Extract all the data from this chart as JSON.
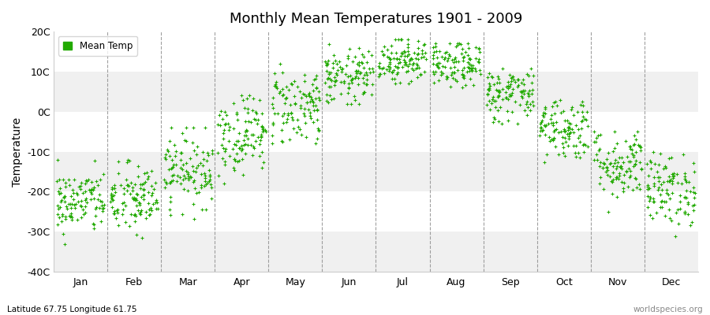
{
  "title": "Monthly Mean Temperatures 1901 - 2009",
  "ylabel": "Temperature",
  "xlabel_bottom_left": "Latitude 67.75 Longitude 61.75",
  "xlabel_bottom_right": "worldspecies.org",
  "legend_label": "Mean Temp",
  "dot_color": "#22aa00",
  "background_color": "#ffffff",
  "plot_bg_color": "#ffffff",
  "band_color_light": "#f0f0f0",
  "band_color_white": "#ffffff",
  "ylim": [
    -40,
    20
  ],
  "yticks": [
    -40,
    -30,
    -20,
    -10,
    0,
    10,
    20
  ],
  "ytick_labels": [
    "-40C",
    "-30C",
    "-20C",
    "-10C",
    "0C",
    "10C",
    "20C"
  ],
  "months": [
    "Jan",
    "Feb",
    "Mar",
    "Apr",
    "May",
    "Jun",
    "Jul",
    "Aug",
    "Sep",
    "Oct",
    "Nov",
    "Dec"
  ],
  "month_mean_temps": [
    -22.5,
    -22.0,
    -14.5,
    -5.5,
    1.5,
    8.5,
    13.0,
    11.5,
    4.5,
    -4.0,
    -13.0,
    -19.5
  ],
  "month_std_temps": [
    4.0,
    4.5,
    4.5,
    5.0,
    5.0,
    3.5,
    3.0,
    2.8,
    3.5,
    4.0,
    4.5,
    4.5
  ],
  "month_min_temps": [
    -35,
    -36,
    -34,
    -18,
    -8,
    2,
    7,
    5,
    -3,
    -14,
    -25,
    -33
  ],
  "month_max_temps": [
    -12,
    -12,
    -4,
    4,
    12,
    17,
    18,
    17,
    11,
    3,
    -5,
    -10
  ],
  "n_points": 109,
  "seed": 42,
  "dot_size": 8,
  "dot_marker": "+"
}
